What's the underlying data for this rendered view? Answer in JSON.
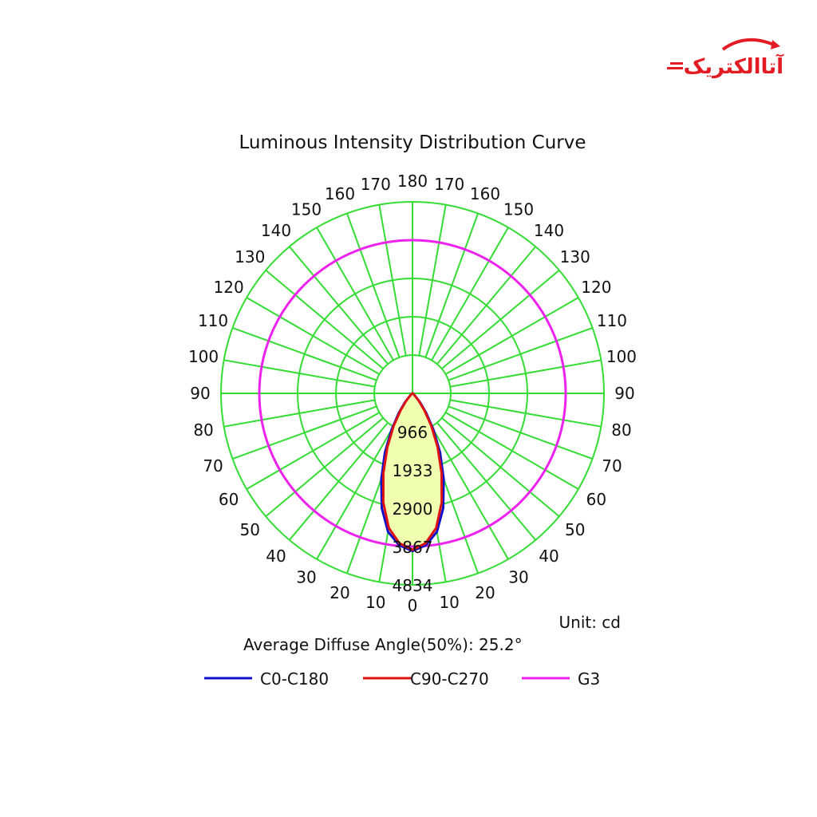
{
  "logo": {
    "text": "آتاالکتریک",
    "color": "#e31b23"
  },
  "chart_data": {
    "type": "polar",
    "title": "Luminous Intensity Distribution Curve",
    "unit_label": "Unit: cd",
    "diffuse_angle_label": "Average Diffuse Angle(50%): 25.2°",
    "radial_ticks": [
      966,
      1933,
      2900,
      3867,
      4834
    ],
    "radial_max": 4834,
    "angle_labels_right": [
      0,
      10,
      20,
      30,
      40,
      50,
      60,
      70,
      80,
      90,
      100,
      110,
      120,
      130,
      140,
      150,
      160,
      170,
      180
    ],
    "angle_labels_left": [
      10,
      20,
      30,
      40,
      50,
      60,
      70,
      80,
      90,
      100,
      110,
      120,
      130,
      140,
      150,
      160,
      170
    ],
    "grid_color": "#33dd33",
    "fill_color": "#f0ffb0",
    "series": [
      {
        "name": "C0-C180",
        "color": "#1010cc",
        "gamma": [
          0,
          5,
          10,
          15,
          20,
          25,
          30,
          35,
          40,
          50,
          60
        ],
        "intensity": [
          3980,
          3850,
          3550,
          3000,
          2300,
          1650,
          1050,
          600,
          300,
          60,
          0
        ]
      },
      {
        "name": "C90-C270",
        "color": "#dd1111",
        "gamma": [
          0,
          5,
          10,
          15,
          20,
          25,
          30,
          35,
          40,
          50,
          60
        ],
        "intensity": [
          3950,
          3800,
          3450,
          2850,
          2150,
          1500,
          950,
          520,
          250,
          50,
          0
        ]
      },
      {
        "name": "G3",
        "color": "#ee22ee",
        "circle_intensity": 3867
      }
    ]
  }
}
